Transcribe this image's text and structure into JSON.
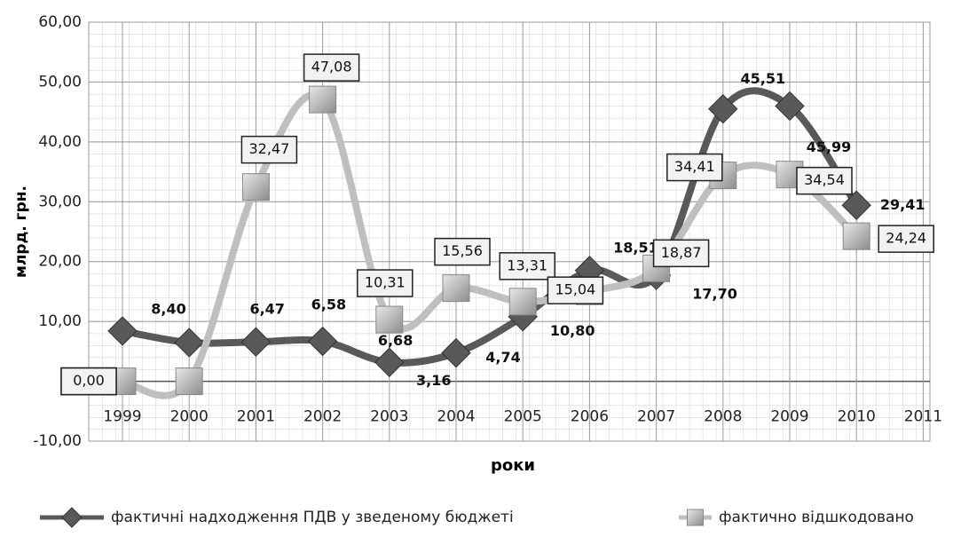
{
  "chart_data": {
    "type": "line",
    "x_label": "роки",
    "y_label": "млрд. грн.",
    "categories": [
      "1999",
      "2000",
      "2001",
      "2002",
      "2003",
      "2004",
      "2005",
      "2006",
      "2007",
      "2008",
      "2009",
      "2010",
      "2011"
    ],
    "series": [
      {
        "name": "фактичні надходження ПДВ у зведеному бюджеті",
        "color": "#595959",
        "values": [
          8.4,
          6.47,
          6.58,
          6.68,
          3.16,
          4.74,
          10.8,
          18.51,
          17.7,
          45.51,
          45.99,
          29.41,
          null
        ],
        "value_labels": [
          "8,40",
          "6,47",
          "6,58",
          "6,68",
          "3,16",
          "4,74",
          "10,80",
          "18,51",
          "17,70",
          "45,51",
          "45,99",
          "29,41",
          null
        ]
      },
      {
        "name": "фактично відшкодовано",
        "color": "#bfbfbf",
        "values": [
          0.0,
          0.0,
          32.47,
          47.08,
          10.31,
          15.56,
          13.31,
          15.04,
          18.87,
          34.41,
          34.54,
          24.24,
          null
        ],
        "value_labels": [
          "0,00",
          "0,00",
          "32,47",
          "47,08",
          "10,31",
          "15,56",
          "13,31",
          "15,04",
          "18,87",
          "34,41",
          "34,54",
          "24,24",
          null
        ]
      }
    ],
    "ylim": [
      -10,
      60
    ],
    "yticks": [
      {
        "value": -10,
        "label": "-10,00"
      },
      0,
      {
        "value": 10,
        "label": "10,00"
      },
      {
        "value": 20,
        "label": "20,00"
      },
      {
        "value": 30,
        "label": "30,00"
      },
      {
        "value": 40,
        "label": "40,00"
      },
      {
        "value": 50,
        "label": "50,00"
      },
      {
        "value": 60,
        "label": "60,00"
      }
    ],
    "grid": true,
    "legend": "bottom"
  }
}
